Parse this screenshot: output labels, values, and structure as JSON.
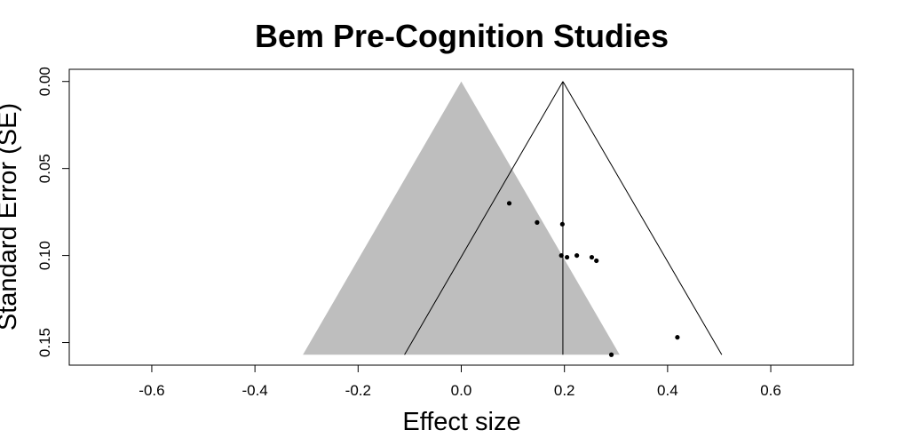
{
  "chart_data": {
    "type": "scatter",
    "subtype": "funnel-plot",
    "title": "Bem Pre-Cognition Studies",
    "xlabel": "Effect size",
    "ylabel": "Standard Error (SE)",
    "xlim": [
      -0.76,
      0.76
    ],
    "ylim": [
      0.163,
      -0.007
    ],
    "y_reversed": true,
    "x_ticks": [
      -0.6,
      -0.4,
      -0.2,
      0.0,
      0.2,
      0.4,
      0.6
    ],
    "x_tick_labels": [
      "-0.6",
      "-0.4",
      "-0.2",
      "0.0",
      "0.2",
      "0.4",
      "0.6"
    ],
    "y_ticks": [
      0.0,
      0.05,
      0.1,
      0.15
    ],
    "y_tick_labels": [
      "0.00",
      "0.05",
      "0.10",
      "0.15"
    ],
    "grid": false,
    "null_funnel": {
      "apex": [
        0.0,
        0.0
      ],
      "base_se": 0.157,
      "base_left": -0.307,
      "base_right": 0.307,
      "fill": "#bebebe"
    },
    "pooled_funnel": {
      "apex": [
        0.197,
        0.0
      ],
      "base_se": 0.157,
      "base_left": -0.11,
      "base_right": 0.505,
      "stroke": "#000000"
    },
    "pooled_estimate_line": {
      "x": 0.197,
      "from_se": 0.0,
      "to_se": 0.157
    },
    "points": [
      {
        "x": 0.093,
        "y": 0.07
      },
      {
        "x": 0.147,
        "y": 0.081
      },
      {
        "x": 0.196,
        "y": 0.082
      },
      {
        "x": 0.194,
        "y": 0.1
      },
      {
        "x": 0.205,
        "y": 0.101
      },
      {
        "x": 0.224,
        "y": 0.1
      },
      {
        "x": 0.253,
        "y": 0.101
      },
      {
        "x": 0.262,
        "y": 0.103
      },
      {
        "x": 0.419,
        "y": 0.147
      },
      {
        "x": 0.291,
        "y": 0.157
      }
    ],
    "point_color": "#000000"
  }
}
